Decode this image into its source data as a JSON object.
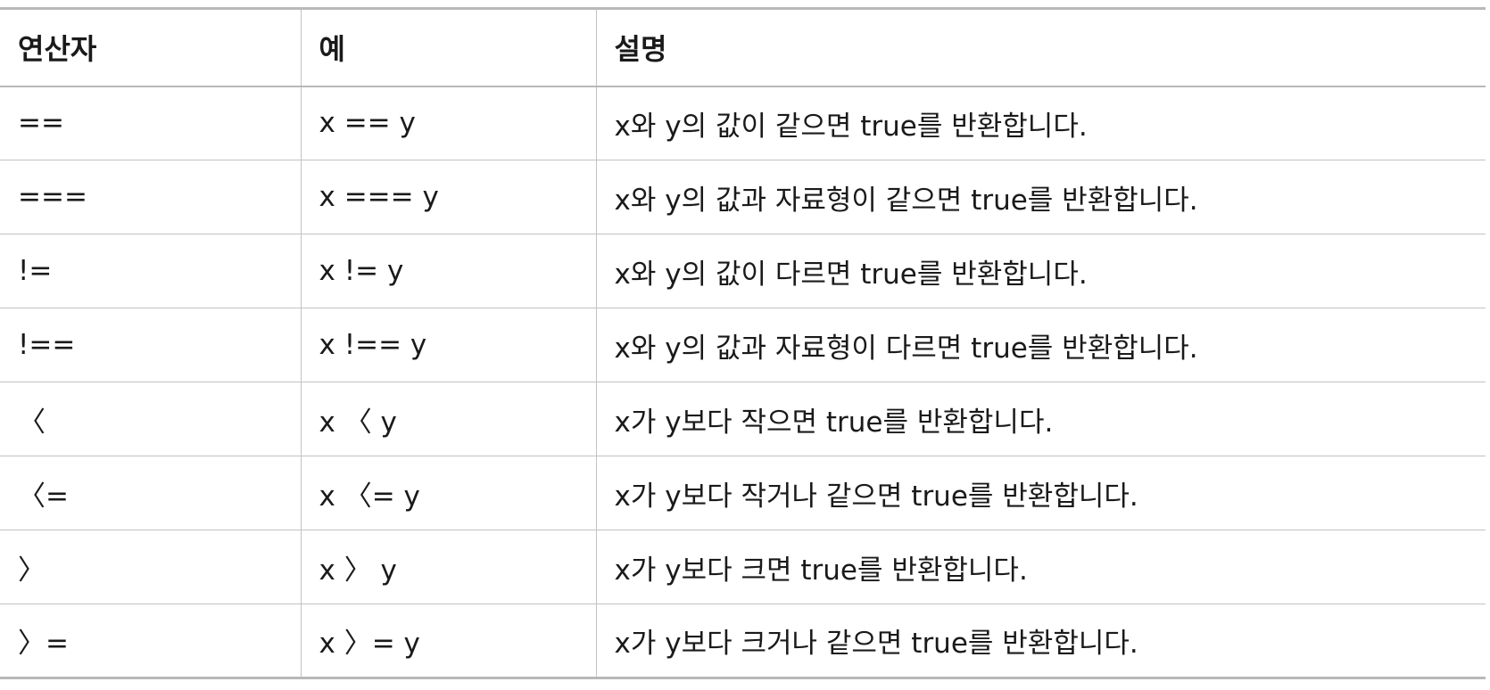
{
  "table": {
    "headers": [
      "연산자",
      "예",
      "설명"
    ],
    "rows": [
      [
        "==",
        "x == y",
        "x와 y의 값이 같으면 true를 반환합니다."
      ],
      [
        "===",
        "x === y",
        "x와 y의 값과 자료형이 같으면 true를 반환합니다."
      ],
      [
        "!=",
        "x != y",
        "x와 y의 값이 다르면 true를 반환합니다."
      ],
      [
        "!==",
        "x !== y",
        "x와 y의 값과 자료형이 다르면 true를 반환합니다."
      ],
      [
        "〈",
        "x 〈 y",
        "x가 y보다 작으면 true를 반환합니다."
      ],
      [
        "〈=",
        "x 〈= y",
        "x가 y보다 작거나 같으면 true를 반환합니다."
      ],
      [
        "〉",
        "x 〉 y",
        "x가 y보다 크면 true를 반환합니다."
      ],
      [
        "〉=",
        "x 〉= y",
        "x가 y보다 크거나 같으면 true를 반환합니다."
      ]
    ]
  }
}
